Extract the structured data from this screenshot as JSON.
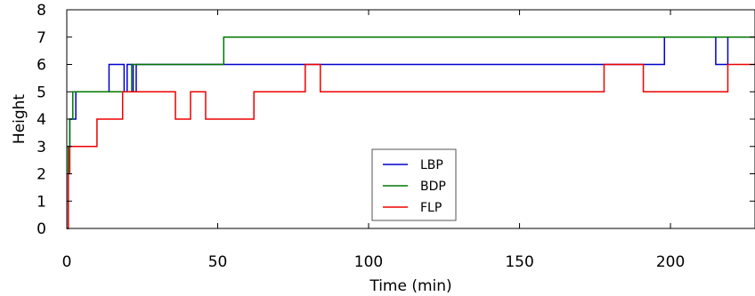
{
  "chart_data": {
    "type": "line",
    "xlabel": "Time (min)",
    "ylabel": "Height",
    "xlim": [
      0,
      228
    ],
    "ylim": [
      0,
      8
    ],
    "xticks": [
      0,
      50,
      100,
      150,
      200
    ],
    "yticks": [
      0,
      1,
      2,
      3,
      4,
      5,
      6,
      7,
      8
    ],
    "grid": false,
    "legend_position": "bottom-center",
    "series": [
      {
        "name": "LBP",
        "color": "#0000cc",
        "step": true,
        "x": [
          0,
          0.5,
          1,
          2,
          3,
          14,
          19,
          20,
          22,
          23,
          46,
          198,
          215,
          219,
          228
        ],
        "y": [
          0,
          3,
          4,
          4,
          5,
          6,
          5,
          6,
          5,
          6,
          6,
          7,
          6,
          7,
          7
        ]
      },
      {
        "name": "BDP",
        "color": "#007700",
        "step": true,
        "x": [
          0,
          0.5,
          1,
          2,
          21.5,
          52,
          228
        ],
        "y": [
          0,
          3,
          4,
          5,
          6,
          7,
          7
        ]
      },
      {
        "name": "FLP",
        "color": "#ee0000",
        "step": true,
        "x": [
          0,
          0.5,
          1,
          10,
          18.5,
          36,
          41,
          46,
          62,
          79,
          84,
          178,
          191,
          219,
          228
        ],
        "y": [
          0,
          2,
          3,
          4,
          5,
          4,
          5,
          4,
          5,
          6,
          5,
          6,
          5,
          6,
          6
        ]
      }
    ]
  }
}
